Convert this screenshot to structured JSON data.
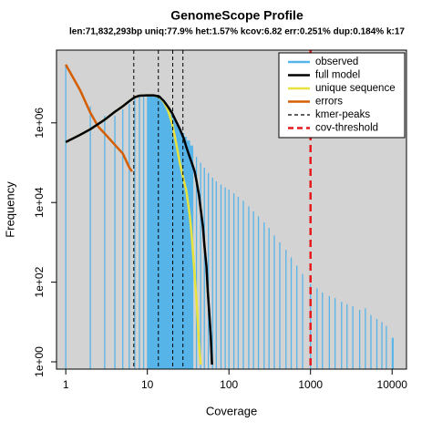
{
  "chart_data": {
    "type": "line",
    "title": "GenomeScope Profile",
    "subtitle": "len:71,832,293bp uniq:77.9%  het:1.57% kcov:6.82 err:0.251%  dup:0.184%  k:17",
    "x_label": "Coverage",
    "y_label": "Frequency",
    "x_log": true,
    "y_log": true,
    "xlim": [
      0.77,
      15000
    ],
    "ylim": [
      0.656,
      67000000
    ],
    "xticks": [
      1,
      10,
      100,
      1000,
      10000
    ],
    "yticks": [
      {
        "value": 1,
        "label": "1e+00"
      },
      {
        "value": 100,
        "label": "1e+02"
      },
      {
        "value": 10000,
        "label": "1e+04"
      },
      {
        "value": 1000000,
        "label": "1e+06"
      }
    ],
    "background": "#d3d3d3",
    "legend": "topright",
    "series": [
      {
        "name": "observed",
        "color": "#56b4e9",
        "kind": "bars",
        "x": [
          1,
          2,
          3,
          4,
          5,
          6,
          7,
          8,
          9,
          10,
          11,
          12,
          13,
          14,
          15,
          16,
          17,
          18,
          19,
          20,
          22,
          24,
          26,
          28,
          30,
          33,
          36,
          40,
          45,
          50,
          56,
          63,
          70,
          80,
          90,
          100,
          115,
          130,
          150,
          175,
          200,
          230,
          270,
          310,
          360,
          420,
          500,
          580,
          680,
          800,
          1000,
          1200,
          1400,
          1700,
          2000,
          2400,
          2800,
          3300,
          4000,
          4700,
          5500,
          6500,
          7500,
          8500,
          10000
        ],
        "values": [
          29000000,
          2600000,
          1500000,
          1500000,
          2200000,
          3000000,
          4000000,
          4600000,
          4900000,
          5000000,
          5000000,
          4900000,
          4700000,
          4300000,
          3800000,
          3200000,
          2600000,
          2000000,
          1600000,
          1300000,
          900000,
          700000,
          550000,
          450000,
          360000,
          270000,
          200000,
          140000,
          100000,
          75000,
          55000,
          42000,
          34000,
          28000,
          24000,
          21000,
          17000,
          14000,
          11000,
          8000,
          6000,
          4500,
          3200,
          2300,
          1500,
          1000,
          650,
          420,
          260,
          160,
          90,
          70,
          55,
          45,
          40,
          32,
          28,
          25,
          20,
          22,
          15,
          12,
          10,
          8,
          4
        ]
      },
      {
        "name": "full model",
        "color": "#000000",
        "kind": "line",
        "x": [
          1,
          1.5,
          2,
          3,
          4,
          5,
          6,
          7,
          8,
          10,
          12,
          14,
          16,
          18,
          20,
          22,
          25,
          28,
          30,
          33,
          35,
          38,
          40,
          43,
          45,
          48,
          50,
          53,
          55,
          58,
          60,
          62
        ],
        "values": [
          330000,
          500000,
          690000,
          1200000,
          1900000,
          2600000,
          3500000,
          4400000,
          4800000,
          4900000,
          4900000,
          4600000,
          3500000,
          2500000,
          1800000,
          1200000,
          700000,
          400000,
          250000,
          140000,
          100000,
          60000,
          35000,
          15000,
          7000,
          2500,
          850,
          250,
          60,
          12,
          4,
          0.85
        ]
      },
      {
        "name": "unique sequence",
        "color": "#e8e33c",
        "kind": "line",
        "x": [
          1,
          1.5,
          2,
          3,
          4,
          5,
          6,
          7,
          8,
          10,
          12,
          14,
          16,
          18,
          20,
          22,
          25,
          28,
          30,
          33,
          35,
          38,
          40,
          43,
          45
        ],
        "values": [
          330000,
          500000,
          690000,
          1200000,
          1900000,
          2600000,
          3500000,
          4400000,
          4800000,
          4900000,
          4900000,
          4500000,
          3300000,
          2000000,
          1000000,
          400000,
          100000,
          35000,
          20000,
          5000,
          1450,
          150,
          36,
          3,
          0.85
        ]
      },
      {
        "name": "errors",
        "color": "#d55e00",
        "kind": "line",
        "x": [
          1,
          1.5,
          2,
          2.5,
          3,
          4,
          5,
          6,
          6.5
        ],
        "values": [
          29000000,
          6600000,
          1800000,
          800000,
          540000,
          280000,
          170000,
          76000,
          60000
        ]
      }
    ],
    "kmer_peaks": {
      "name": "kmer-peaks",
      "color": "#000000",
      "values": [
        6.82,
        13.64,
        20.46,
        27.28
      ]
    },
    "cov_threshold": {
      "name": "cov-threshold",
      "color": "#e41a1c",
      "value": 1000
    }
  }
}
